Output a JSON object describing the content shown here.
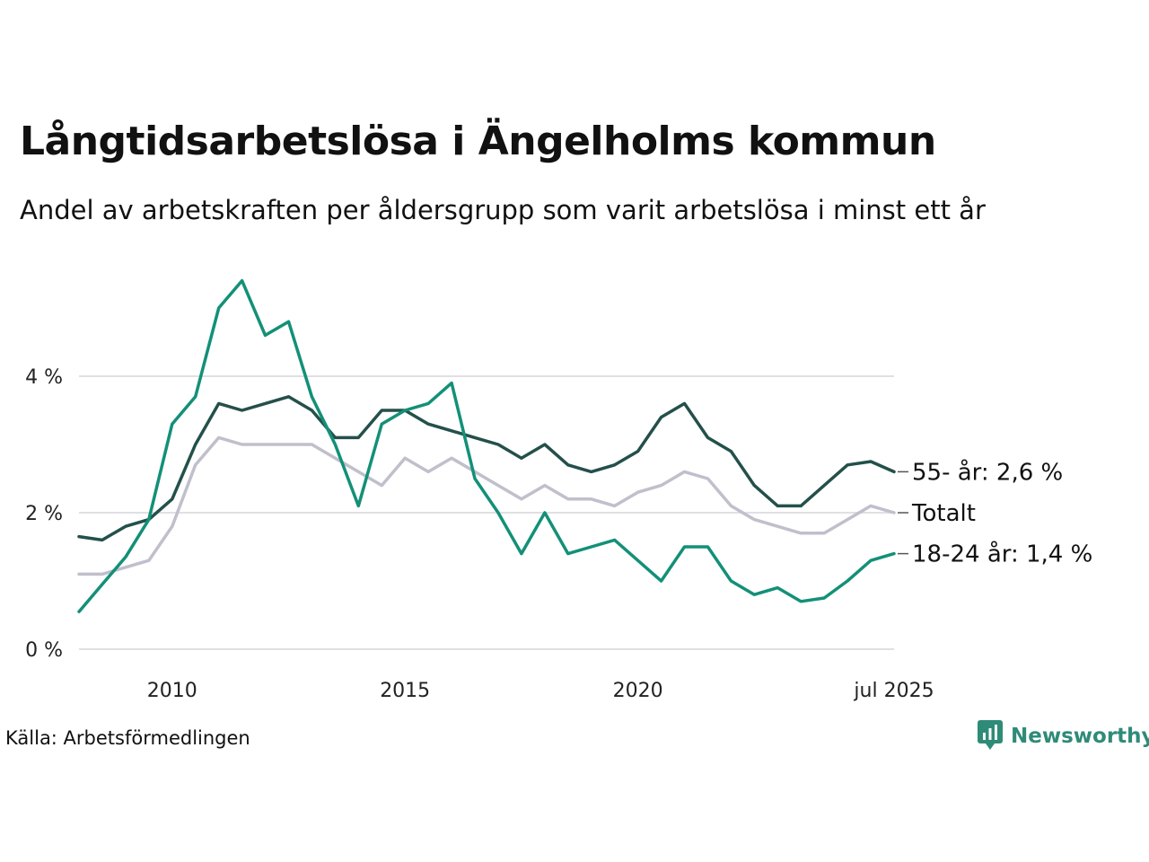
{
  "title": "Långtidsarbetslösa i Ängelholms kommun",
  "subtitle": "Andel av arbetskraften per åldersgrupp som varit arbetslösa i minst ett år",
  "source": "Källa: Arbetsförmedlingen",
  "brand": {
    "name": "Newsworthy",
    "icon": "newsworthy-logo-icon",
    "color": "#2e8b78"
  },
  "chart_data": {
    "type": "line",
    "x_range": [
      2008.0,
      2025.5
    ],
    "ylim": [
      0,
      5.6
    ],
    "y_ticks": [
      0,
      2,
      4
    ],
    "y_tick_labels": [
      "0 %",
      "2 %",
      "4 %"
    ],
    "x_ticks": [
      2010,
      2015,
      2020,
      2025.5
    ],
    "x_tick_labels": [
      "2010",
      "2015",
      "2020",
      "jul 2025"
    ],
    "grid": true,
    "legend": "end-labels",
    "series": [
      {
        "name": "Totalt",
        "end_label": "Totalt",
        "color": "#c0bfcc",
        "x": [
          2008.0,
          2008.5,
          2009.0,
          2009.5,
          2010.0,
          2010.5,
          2011.0,
          2011.5,
          2012.0,
          2012.5,
          2013.0,
          2013.5,
          2014.0,
          2014.5,
          2015.0,
          2015.5,
          2016.0,
          2016.5,
          2017.0,
          2017.5,
          2018.0,
          2018.5,
          2019.0,
          2019.5,
          2020.0,
          2020.5,
          2021.0,
          2021.5,
          2022.0,
          2022.5,
          2023.0,
          2023.5,
          2024.0,
          2024.5,
          2025.0,
          2025.5
        ],
        "y": [
          1.1,
          1.1,
          1.2,
          1.3,
          1.8,
          2.7,
          3.1,
          3.0,
          3.0,
          3.0,
          3.0,
          2.8,
          2.6,
          2.4,
          2.8,
          2.6,
          2.8,
          2.6,
          2.4,
          2.2,
          2.4,
          2.2,
          2.2,
          2.1,
          2.3,
          2.4,
          2.6,
          2.5,
          2.1,
          1.9,
          1.8,
          1.7,
          1.7,
          1.9,
          2.1,
          2.0
        ]
      },
      {
        "name": "55- år",
        "end_label": "55- år: 2,6 %",
        "color": "#24504a",
        "x": [
          2008.0,
          2008.5,
          2009.0,
          2009.5,
          2010.0,
          2010.5,
          2011.0,
          2011.5,
          2012.0,
          2012.5,
          2013.0,
          2013.5,
          2014.0,
          2014.5,
          2015.0,
          2015.5,
          2016.0,
          2016.5,
          2017.0,
          2017.5,
          2018.0,
          2018.5,
          2019.0,
          2019.5,
          2020.0,
          2020.5,
          2021.0,
          2021.5,
          2022.0,
          2022.5,
          2023.0,
          2023.5,
          2024.0,
          2024.5,
          2025.0,
          2025.5
        ],
        "y": [
          1.65,
          1.6,
          1.8,
          1.9,
          2.2,
          3.0,
          3.6,
          3.5,
          3.6,
          3.7,
          3.5,
          3.1,
          3.1,
          3.5,
          3.5,
          3.3,
          3.2,
          3.1,
          3.0,
          2.8,
          3.0,
          2.7,
          2.6,
          2.7,
          2.9,
          3.4,
          3.6,
          3.1,
          2.9,
          2.4,
          2.1,
          2.1,
          2.4,
          2.7,
          2.75,
          2.6
        ]
      },
      {
        "name": "18-24 år",
        "end_label": "18-24 år: 1,4 %",
        "color": "#139078",
        "x": [
          2008.0,
          2008.5,
          2009.0,
          2009.5,
          2010.0,
          2010.5,
          2011.0,
          2011.5,
          2012.0,
          2012.5,
          2013.0,
          2013.5,
          2014.0,
          2014.5,
          2015.0,
          2015.5,
          2016.0,
          2016.5,
          2017.0,
          2017.5,
          2018.0,
          2018.5,
          2019.0,
          2019.5,
          2020.0,
          2020.5,
          2021.0,
          2021.5,
          2022.0,
          2022.5,
          2023.0,
          2023.5,
          2024.0,
          2024.5,
          2025.0,
          2025.5
        ],
        "y": [
          0.55,
          0.95,
          1.35,
          1.9,
          3.3,
          3.7,
          5.0,
          5.4,
          4.6,
          4.8,
          3.7,
          3.0,
          2.1,
          3.3,
          3.5,
          3.6,
          3.9,
          2.5,
          2.0,
          1.4,
          2.0,
          1.4,
          1.5,
          1.6,
          1.3,
          1.0,
          1.5,
          1.5,
          1.0,
          0.8,
          0.9,
          0.7,
          0.75,
          1.0,
          1.3,
          1.4
        ]
      }
    ]
  }
}
